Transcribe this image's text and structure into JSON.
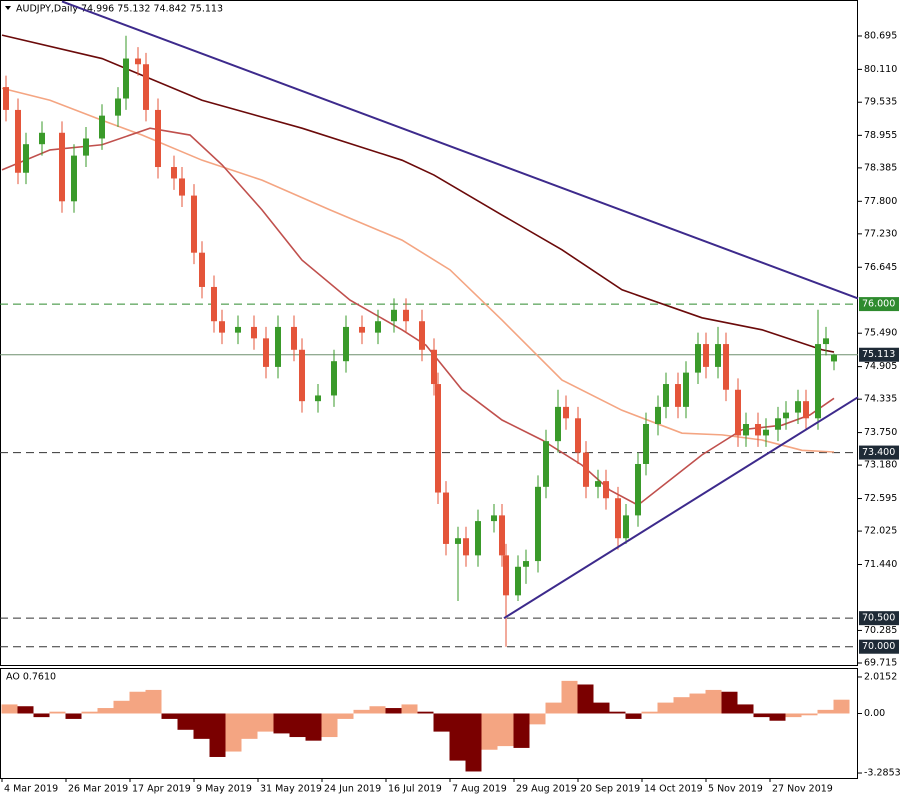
{
  "chart_data": [
    {
      "type": "candlestick",
      "title": "AUDJPY,Daily 74.996 75.132 74.842 75.113",
      "x": [
        1,
        4,
        6,
        10,
        15,
        18,
        21,
        25,
        29,
        31,
        34,
        36,
        39,
        43,
        45,
        48,
        50,
        53,
        55,
        59,
        63,
        66,
        69,
        73,
        75,
        79,
        83,
        86,
        90,
        94,
        98,
        101,
        105,
        108,
        109,
        111,
        114,
        116,
        119,
        123,
        125,
        126,
        129,
        131,
        134,
        136,
        139,
        141,
        144,
        146,
        149,
        151,
        154,
        156,
        159,
        161,
        164,
        166,
        169,
        171,
        174,
        176,
        179,
        181,
        184,
        186,
        189,
        191,
        194,
        196,
        199,
        201,
        204,
        206,
        208
      ],
      "open": [
        79.8,
        79.4,
        78.3,
        78.8,
        79.0,
        77.8,
        78.6,
        78.9,
        79.3,
        79.6,
        80.3,
        80.2,
        79.4,
        78.4,
        78.2,
        77.9,
        76.9,
        76.3,
        75.7,
        75.5,
        75.6,
        75.4,
        74.9,
        75.6,
        75.2,
        74.3,
        74.4,
        75.0,
        75.6,
        75.5,
        75.7,
        75.9,
        75.7,
        75.2,
        74.6,
        72.7,
        71.8,
        71.9,
        71.6,
        72.2,
        72.3,
        71.6,
        70.9,
        71.4,
        71.5,
        72.8,
        73.6,
        74.2,
        74.0,
        73.4,
        72.8,
        72.9,
        72.6,
        71.9,
        72.3,
        73.2,
        73.9,
        74.2,
        74.6,
        74.2,
        74.8,
        75.3,
        74.9,
        75.3,
        74.5,
        73.7,
        73.9,
        73.7,
        73.8,
        74.0,
        74.1,
        74.3,
        74.0,
        75.3,
        74.996
      ],
      "high": [
        80.0,
        79.6,
        79.0,
        79.2,
        79.2,
        78.8,
        79.1,
        79.5,
        79.8,
        80.7,
        80.5,
        80.4,
        79.6,
        78.6,
        78.4,
        78.1,
        77.1,
        76.5,
        75.9,
        75.8,
        75.8,
        75.6,
        75.8,
        75.8,
        75.4,
        74.6,
        75.2,
        75.8,
        75.8,
        75.9,
        76.1,
        76.1,
        75.9,
        75.4,
        74.8,
        72.9,
        72.1,
        72.1,
        72.4,
        72.5,
        72.5,
        71.8,
        71.6,
        71.7,
        73.0,
        73.8,
        74.5,
        74.4,
        74.2,
        73.6,
        73.1,
        73.1,
        72.8,
        72.5,
        73.4,
        74.1,
        74.4,
        74.8,
        74.8,
        75.0,
        75.5,
        75.5,
        75.6,
        75.5,
        74.7,
        74.1,
        74.1,
        74.0,
        74.2,
        74.3,
        74.5,
        74.5,
        75.9,
        75.6,
        75.132
      ],
      "low": [
        79.2,
        78.1,
        78.1,
        78.6,
        77.6,
        77.6,
        78.4,
        78.7,
        79.1,
        79.4,
        80.0,
        79.2,
        78.2,
        78.0,
        77.7,
        76.7,
        76.1,
        75.5,
        75.3,
        75.3,
        75.2,
        74.7,
        74.7,
        75.0,
        74.1,
        74.1,
        74.2,
        74.8,
        75.3,
        75.3,
        75.5,
        75.5,
        75.0,
        74.4,
        72.5,
        71.6,
        70.8,
        71.4,
        71.4,
        72.0,
        71.4,
        70.0,
        70.8,
        71.1,
        71.3,
        72.6,
        73.4,
        73.8,
        73.2,
        72.6,
        72.6,
        72.4,
        71.7,
        71.8,
        72.1,
        73.0,
        73.7,
        74.0,
        74.0,
        74.0,
        74.6,
        74.7,
        74.7,
        74.3,
        73.5,
        73.5,
        73.5,
        73.5,
        73.6,
        73.8,
        73.9,
        73.8,
        73.8,
        75.1,
        74.842
      ],
      "close": [
        79.4,
        78.3,
        78.8,
        79.0,
        77.8,
        78.6,
        78.9,
        79.3,
        79.6,
        80.3,
        80.2,
        79.4,
        78.4,
        78.2,
        77.9,
        76.9,
        76.3,
        75.7,
        75.5,
        75.6,
        75.4,
        74.9,
        75.6,
        75.2,
        74.3,
        74.4,
        75.0,
        75.6,
        75.5,
        75.7,
        75.9,
        75.7,
        75.2,
        74.6,
        72.7,
        71.8,
        71.9,
        71.6,
        72.2,
        72.3,
        71.6,
        70.9,
        71.4,
        71.5,
        72.8,
        73.6,
        74.2,
        74.0,
        73.4,
        72.8,
        72.9,
        72.6,
        71.9,
        72.3,
        73.2,
        73.9,
        74.2,
        74.6,
        74.2,
        74.8,
        75.3,
        74.9,
        75.3,
        74.5,
        73.7,
        73.9,
        73.7,
        73.8,
        74.0,
        74.1,
        74.3,
        74.0,
        75.3,
        75.4,
        75.113
      ],
      "up_color": "#3a9a2a",
      "down_color": "#e4553a",
      "xlim": [
        -0.5,
        214
      ],
      "ylim": [
        69.68,
        81.325
      ],
      "yticks": [
        80.695,
        {
          "value": 80.11,
          "label": "80.110"
        },
        79.535,
        78.955,
        78.385,
        {
          "value": 77.8,
          "label": "77.800"
        },
        {
          "value": 77.23,
          "label": "77.230"
        },
        76.645,
        {
          "value": 75.49,
          "label": "75.490"
        },
        74.905,
        74.335,
        {
          "value": 73.75,
          "label": "73.750"
        },
        {
          "value": 73.18,
          "label": "73.180"
        },
        72.595,
        72.025,
        {
          "value": 71.44,
          "label": "71.440"
        },
        70.285,
        69.715
      ],
      "xticks": [
        {
          "value": 0,
          "label": "4 Mar 2019"
        },
        {
          "value": 16,
          "label": "26 Mar 2019"
        },
        {
          "value": 32,
          "label": "17 Apr 2019"
        },
        {
          "value": 48,
          "label": "9 May 2019"
        },
        {
          "value": 64,
          "label": "31 May 2019"
        },
        {
          "value": 80,
          "label": "24 Jun 2019"
        },
        {
          "value": 96,
          "label": "16 Jul 2019"
        },
        {
          "value": 112,
          "label": "7 Aug 2019"
        },
        {
          "value": 128,
          "label": "29 Aug 2019"
        },
        {
          "value": 144,
          "label": "20 Sep 2019"
        },
        {
          "value": 160,
          "label": "14 Oct 2019"
        },
        {
          "value": 176,
          "label": "5 Nov 2019"
        },
        {
          "value": 192,
          "label": "27 Nov 2019"
        }
      ],
      "overlays": [
        {
          "color": "#6b0a0a",
          "x": [
            0,
            25,
            50,
            75,
            100,
            108,
            125,
            140,
            155,
            175,
            190,
            205,
            208
          ],
          "values": [
            80.71,
            80.3,
            79.57,
            79.08,
            78.52,
            78.26,
            77.56,
            76.95,
            76.25,
            75.76,
            75.55,
            75.2,
            75.16
          ]
        },
        {
          "color": "#f4a582",
          "x": [
            0,
            12,
            25,
            35,
            50,
            65,
            82,
            100,
            112,
            125,
            140,
            155,
            170,
            180,
            190,
            200,
            208
          ],
          "values": [
            79.78,
            79.57,
            79.22,
            78.96,
            78.52,
            78.17,
            77.65,
            77.12,
            76.6,
            75.72,
            74.67,
            74.14,
            73.74,
            73.71,
            73.62,
            73.44,
            73.41
          ]
        },
        {
          "color": "#c0504d",
          "x": [
            0,
            12,
            25,
            37,
            47,
            55,
            65,
            75,
            87,
            100,
            106,
            115,
            125,
            135,
            145,
            152,
            159,
            167,
            175,
            185,
            195,
            202,
            208
          ],
          "values": [
            78.35,
            78.7,
            78.79,
            79.08,
            78.96,
            78.44,
            77.65,
            76.77,
            76.07,
            75.55,
            75.28,
            74.5,
            73.97,
            73.62,
            73.18,
            72.74,
            72.48,
            72.92,
            73.36,
            73.8,
            73.88,
            74.06,
            74.35
          ]
        }
      ],
      "trendlines": [
        {
          "color": "#3d2a8c",
          "x": [
            15,
            214
          ],
          "values": [
            81.3,
            76.1
          ]
        },
        {
          "color": "#3d2a8c",
          "x": [
            125.5,
            214
          ],
          "values": [
            70.5,
            74.37
          ]
        }
      ],
      "levels": [
        {
          "value": 76,
          "label": "76.000",
          "color": "#2e8b2e",
          "label_color": "#2e8b2e",
          "dashed": true
        },
        {
          "value": 75.113,
          "color": "#6f8f6f",
          "label_color": "#1e2a36",
          "dashed": false
        },
        {
          "value": 73.4,
          "label": "73.400",
          "color": "#333333",
          "label_color": "#1e2a36",
          "dashed": true
        },
        {
          "value": 70.5,
          "label": "70.500",
          "color": "#333333",
          "label_color": "#1e2a36",
          "dashed": true
        },
        {
          "value": 70,
          "label": "70.000",
          "color": "#333333",
          "label_color": "#1e2a36",
          "dashed": true
        }
      ]
    },
    {
      "type": "bar",
      "title": "AO 0.7610",
      "x": [
        0,
        4,
        8,
        12,
        16,
        20,
        24,
        28,
        32,
        36,
        40,
        44,
        48,
        52,
        56,
        60,
        64,
        68,
        72,
        76,
        80,
        84,
        88,
        92,
        96,
        100,
        104,
        108,
        112,
        116,
        120,
        124,
        128,
        132,
        136,
        140,
        144,
        148,
        152,
        156,
        160,
        164,
        168,
        172,
        176,
        180,
        184,
        188,
        192,
        196,
        200,
        204,
        208
      ],
      "values": [
        0.5,
        0.4,
        -0.2,
        0.1,
        -0.3,
        0.1,
        0.3,
        0.7,
        1.2,
        1.3,
        -0.3,
        -0.9,
        -1.4,
        -2.4,
        -2.1,
        -1.4,
        -1.0,
        -1.1,
        -1.3,
        -1.5,
        -1.3,
        -0.3,
        0.2,
        0.4,
        0.3,
        0.5,
        0.1,
        -1.0,
        -2.6,
        -3.2,
        -2.0,
        -1.8,
        -1.9,
        -0.6,
        0.6,
        1.8,
        1.6,
        0.6,
        0.1,
        -0.3,
        0.1,
        0.6,
        0.9,
        1.1,
        1.3,
        1.2,
        0.5,
        -0.2,
        -0.4,
        -0.2,
        -0.1,
        0.2,
        0.761
      ],
      "up_color": "#f4a582",
      "down_color": "#7a0000",
      "xlim": [
        -0.5,
        214
      ],
      "ylim": [
        -3.56,
        2.51
      ],
      "yticks": [
        2.0152,
        {
          "value": 0,
          "label": "0.00"
        },
        -3.2853
      ]
    }
  ]
}
